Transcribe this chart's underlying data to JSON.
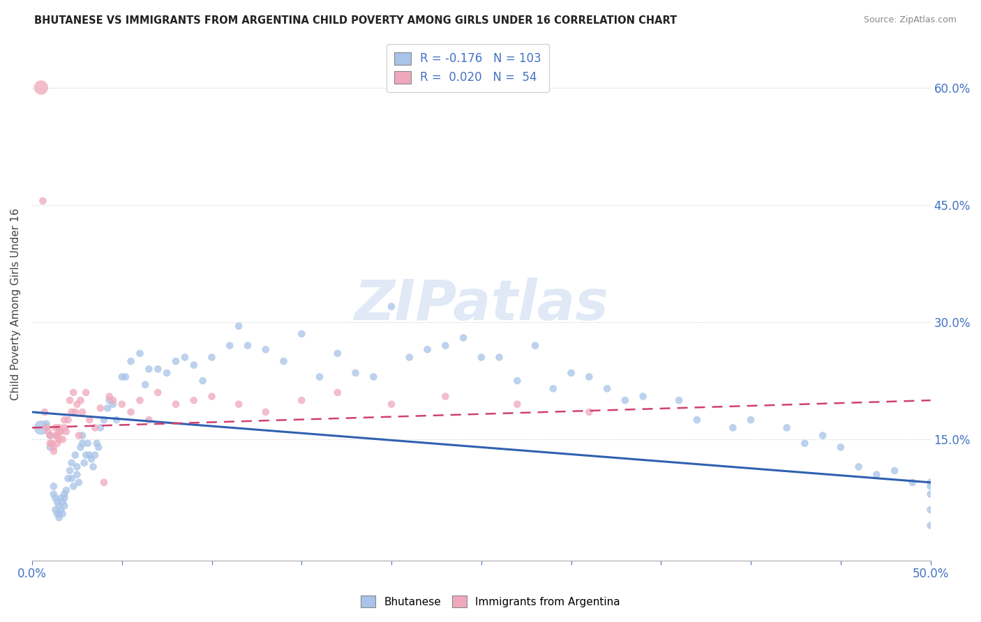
{
  "title": "BHUTANESE VS IMMIGRANTS FROM ARGENTINA CHILD POVERTY AMONG GIRLS UNDER 16 CORRELATION CHART",
  "source": "Source: ZipAtlas.com",
  "ylabel": "Child Poverty Among Girls Under 16",
  "y_ticks": [
    "15.0%",
    "30.0%",
    "45.0%",
    "60.0%"
  ],
  "y_tick_vals": [
    0.15,
    0.3,
    0.45,
    0.6
  ],
  "xlim": [
    0.0,
    0.5
  ],
  "ylim": [
    -0.005,
    0.65
  ],
  "color_blue": "#a8c4e8",
  "color_pink": "#f0a8bc",
  "color_blue_line": "#3060b0",
  "color_pink_line": "#d04070",
  "color_text": "#4472c4",
  "background": "#ffffff",
  "watermark": "ZIPatlas",
  "blue_R": -0.176,
  "blue_N": 103,
  "pink_R": 0.02,
  "pink_N": 54,
  "blue_line_x0": 0.0,
  "blue_line_y0": 0.185,
  "blue_line_x1": 0.5,
  "blue_line_y1": 0.095,
  "pink_line_x0": 0.0,
  "pink_line_y0": 0.165,
  "pink_line_x1": 0.5,
  "pink_line_y1": 0.2,
  "bhutanese_x": [
    0.005,
    0.008,
    0.01,
    0.01,
    0.012,
    0.012,
    0.013,
    0.013,
    0.014,
    0.014,
    0.015,
    0.015,
    0.015,
    0.016,
    0.016,
    0.017,
    0.017,
    0.018,
    0.018,
    0.018,
    0.019,
    0.02,
    0.021,
    0.022,
    0.022,
    0.023,
    0.024,
    0.025,
    0.025,
    0.026,
    0.027,
    0.028,
    0.028,
    0.029,
    0.03,
    0.031,
    0.032,
    0.033,
    0.034,
    0.035,
    0.036,
    0.037,
    0.038,
    0.04,
    0.042,
    0.043,
    0.045,
    0.047,
    0.05,
    0.052,
    0.055,
    0.06,
    0.063,
    0.065,
    0.07,
    0.075,
    0.08,
    0.085,
    0.09,
    0.095,
    0.1,
    0.11,
    0.115,
    0.12,
    0.13,
    0.14,
    0.15,
    0.16,
    0.17,
    0.18,
    0.19,
    0.2,
    0.21,
    0.22,
    0.23,
    0.24,
    0.25,
    0.26,
    0.27,
    0.28,
    0.29,
    0.3,
    0.31,
    0.32,
    0.33,
    0.34,
    0.36,
    0.37,
    0.39,
    0.4,
    0.42,
    0.43,
    0.44,
    0.45,
    0.46,
    0.47,
    0.48,
    0.49,
    0.5,
    0.5,
    0.5,
    0.5,
    0.5
  ],
  "bhutanese_y": [
    0.165,
    0.17,
    0.155,
    0.14,
    0.09,
    0.08,
    0.075,
    0.06,
    0.055,
    0.07,
    0.05,
    0.055,
    0.065,
    0.075,
    0.06,
    0.07,
    0.055,
    0.065,
    0.075,
    0.08,
    0.085,
    0.1,
    0.11,
    0.12,
    0.1,
    0.09,
    0.13,
    0.115,
    0.105,
    0.095,
    0.14,
    0.155,
    0.145,
    0.12,
    0.13,
    0.145,
    0.13,
    0.125,
    0.115,
    0.13,
    0.145,
    0.14,
    0.165,
    0.175,
    0.19,
    0.2,
    0.195,
    0.175,
    0.23,
    0.23,
    0.25,
    0.26,
    0.22,
    0.24,
    0.24,
    0.235,
    0.25,
    0.255,
    0.245,
    0.225,
    0.255,
    0.27,
    0.295,
    0.27,
    0.265,
    0.25,
    0.285,
    0.23,
    0.26,
    0.235,
    0.23,
    0.32,
    0.255,
    0.265,
    0.27,
    0.28,
    0.255,
    0.255,
    0.225,
    0.27,
    0.215,
    0.235,
    0.23,
    0.215,
    0.2,
    0.205,
    0.2,
    0.175,
    0.165,
    0.175,
    0.165,
    0.145,
    0.155,
    0.14,
    0.115,
    0.105,
    0.11,
    0.095,
    0.095,
    0.09,
    0.08,
    0.06,
    0.04
  ],
  "argentina_x": [
    0.005,
    0.006,
    0.007,
    0.008,
    0.009,
    0.01,
    0.01,
    0.011,
    0.012,
    0.012,
    0.013,
    0.013,
    0.014,
    0.014,
    0.015,
    0.015,
    0.015,
    0.016,
    0.017,
    0.018,
    0.018,
    0.019,
    0.02,
    0.021,
    0.022,
    0.023,
    0.024,
    0.025,
    0.026,
    0.027,
    0.028,
    0.03,
    0.032,
    0.035,
    0.038,
    0.04,
    0.043,
    0.045,
    0.05,
    0.055,
    0.06,
    0.065,
    0.07,
    0.08,
    0.09,
    0.1,
    0.115,
    0.13,
    0.15,
    0.17,
    0.2,
    0.23,
    0.27,
    0.31
  ],
  "argentina_y": [
    0.6,
    0.455,
    0.185,
    0.165,
    0.16,
    0.145,
    0.155,
    0.145,
    0.14,
    0.135,
    0.165,
    0.155,
    0.155,
    0.145,
    0.16,
    0.15,
    0.165,
    0.16,
    0.15,
    0.175,
    0.165,
    0.16,
    0.175,
    0.2,
    0.185,
    0.21,
    0.185,
    0.195,
    0.155,
    0.2,
    0.185,
    0.21,
    0.175,
    0.165,
    0.19,
    0.095,
    0.205,
    0.2,
    0.195,
    0.185,
    0.2,
    0.175,
    0.21,
    0.195,
    0.2,
    0.205,
    0.195,
    0.185,
    0.2,
    0.21,
    0.195,
    0.205,
    0.195,
    0.185
  ],
  "blue_sizes": [
    200,
    50,
    50,
    50,
    50,
    50,
    50,
    50,
    50,
    50,
    50,
    50,
    50,
    50,
    50,
    50,
    50,
    50,
    50,
    50,
    50,
    50,
    50,
    50,
    50,
    50,
    50,
    50,
    50,
    50,
    50,
    50,
    50,
    50,
    50,
    50,
    50,
    50,
    50,
    50,
    50,
    50,
    50,
    50,
    50,
    50,
    50,
    50,
    50,
    50,
    50,
    50,
    50,
    50,
    50,
    50,
    50,
    50,
    50,
    50,
    50,
    50,
    50,
    50,
    50,
    50,
    50,
    50,
    50,
    50,
    50,
    50,
    50,
    50,
    50,
    50,
    50,
    50,
    50,
    50,
    50,
    50,
    50,
    50,
    50,
    50,
    50,
    50,
    50,
    50,
    50,
    50,
    50,
    50,
    50,
    50,
    50,
    50,
    50,
    50,
    50,
    50,
    50
  ],
  "pink_sizes": [
    200,
    50,
    50,
    50,
    50,
    50,
    50,
    50,
    50,
    50,
    50,
    50,
    50,
    50,
    50,
    50,
    50,
    50,
    50,
    50,
    50,
    50,
    50,
    50,
    50,
    50,
    50,
    50,
    50,
    50,
    50,
    50,
    50,
    50,
    50,
    50,
    50,
    50,
    50,
    50,
    50,
    50,
    50,
    50,
    50,
    50,
    50,
    50,
    50,
    50,
    50,
    50,
    50,
    50
  ]
}
